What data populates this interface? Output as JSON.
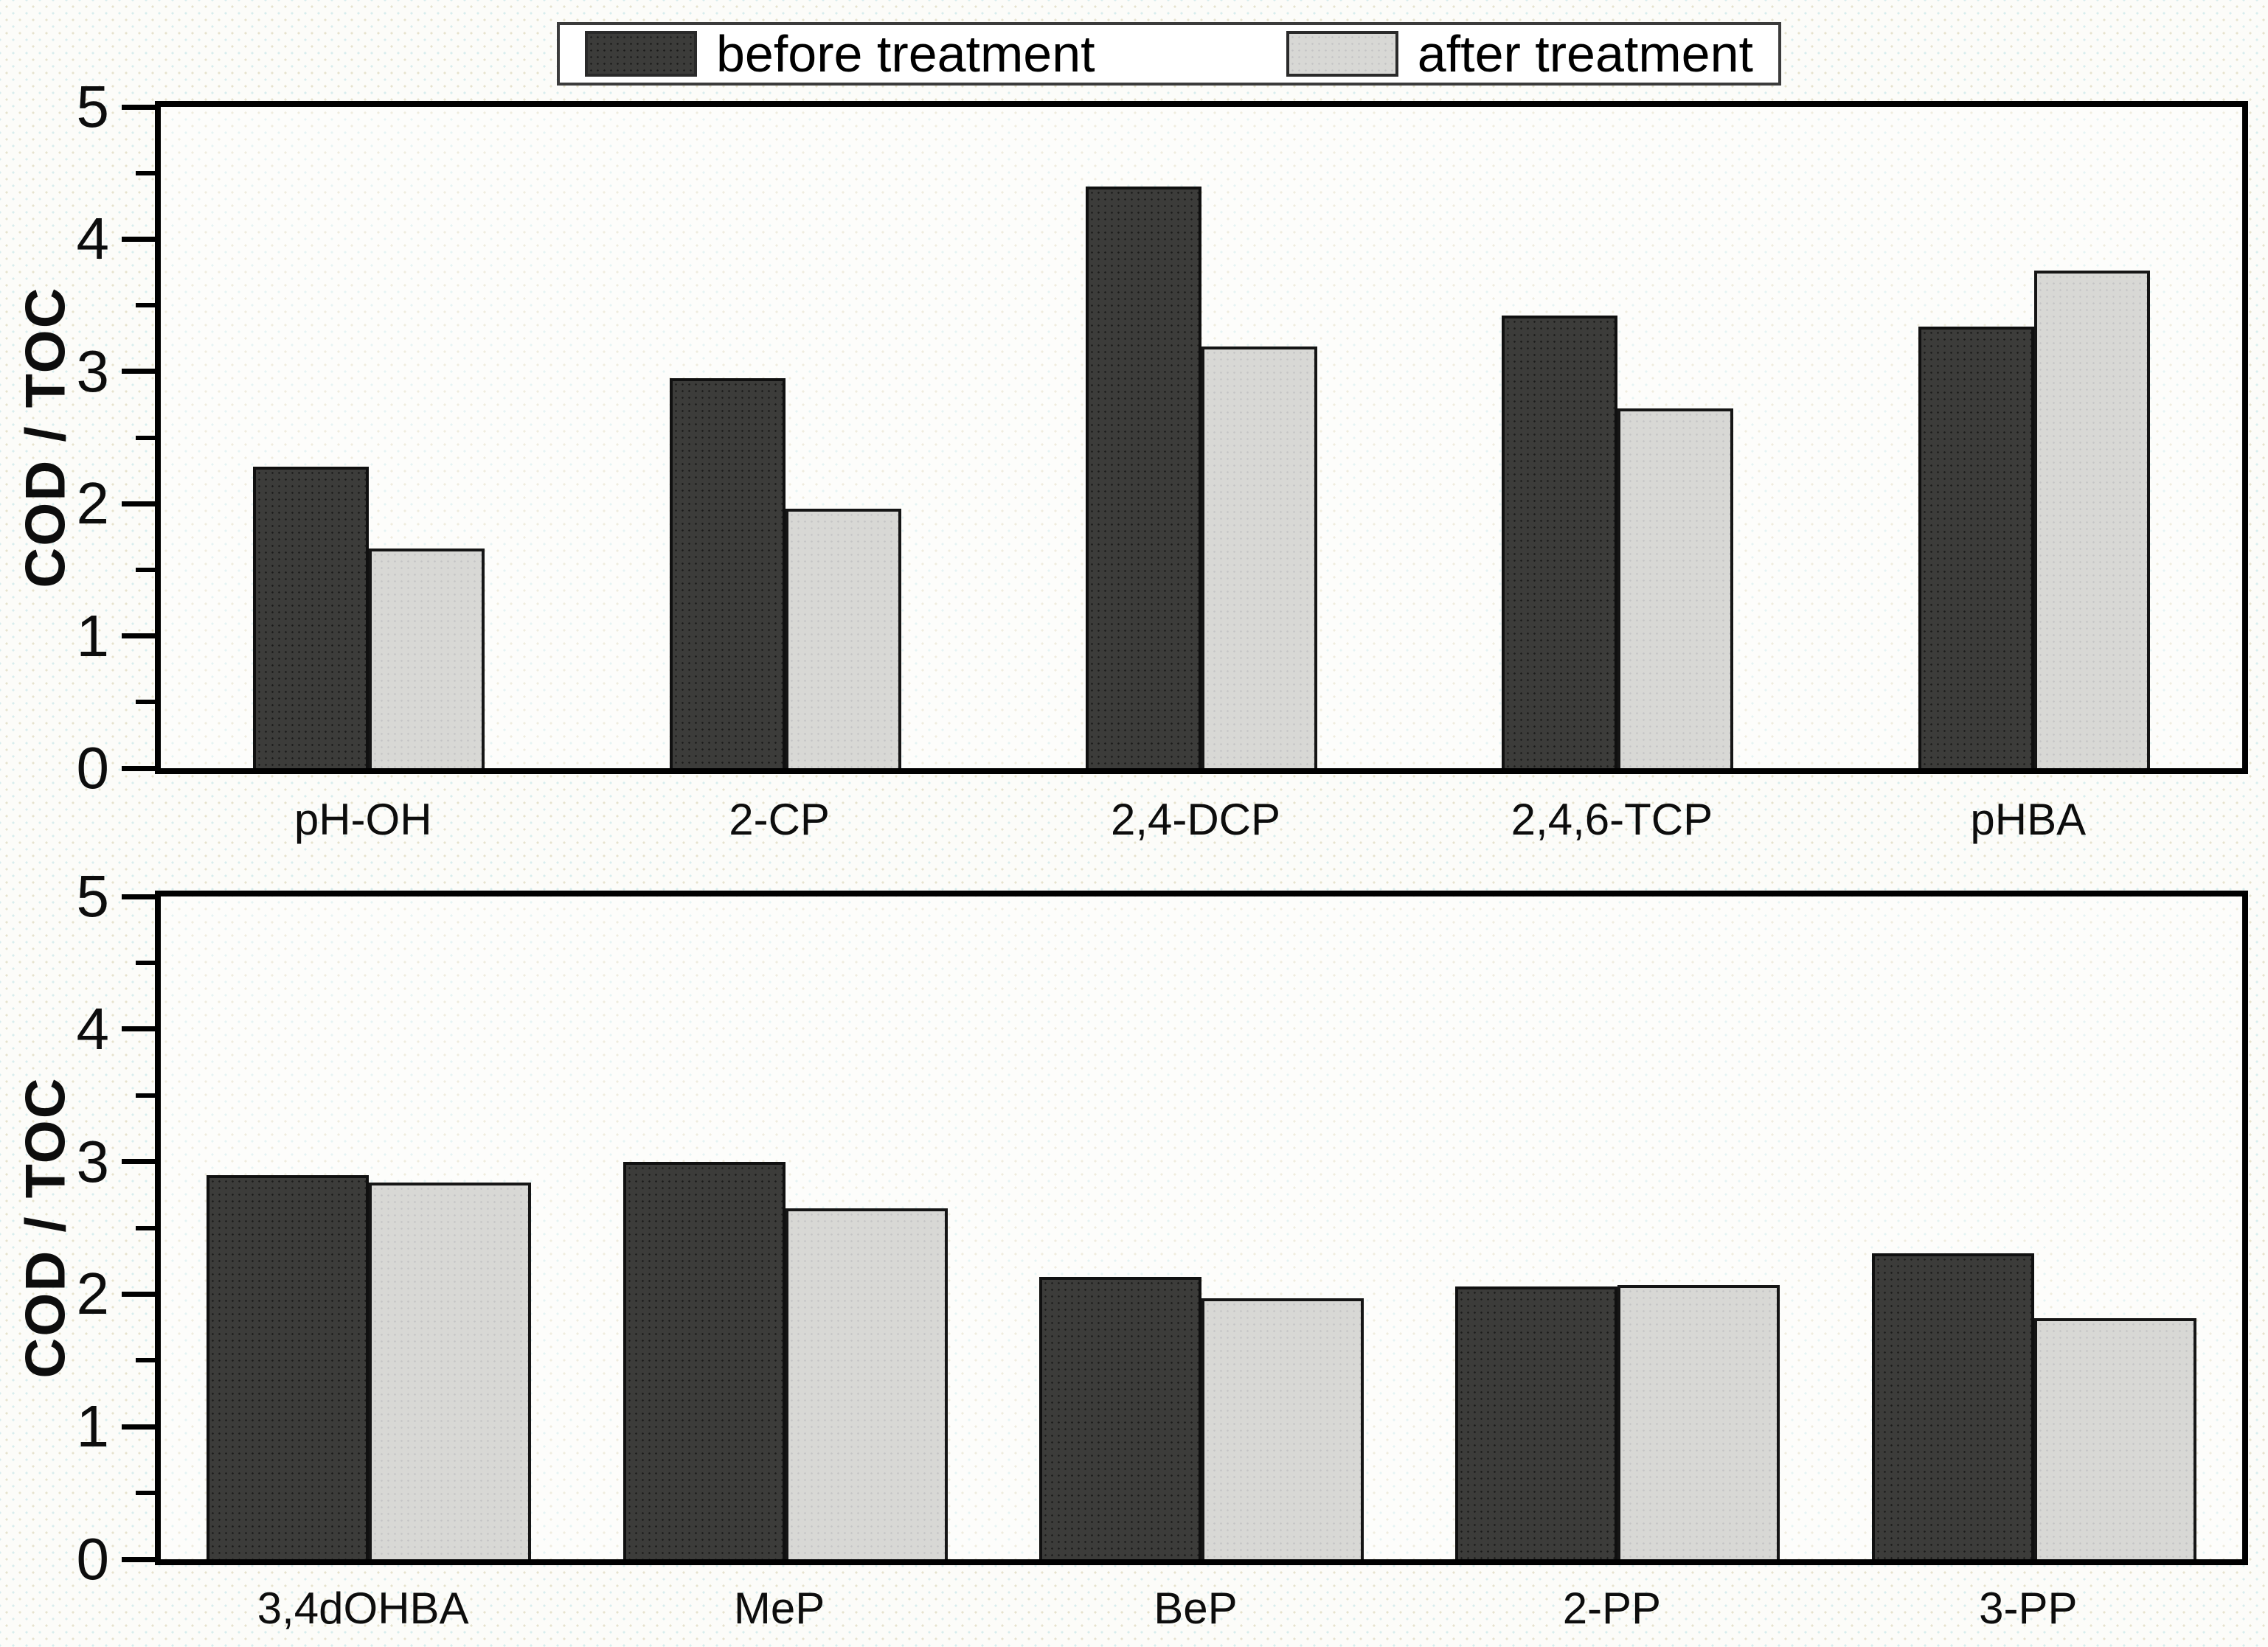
{
  "legend": {
    "items": [
      {
        "label": "before treatment",
        "color": "#3c3c3a"
      },
      {
        "label": "after treatment",
        "color": "#d8d8d5"
      }
    ]
  },
  "colors": {
    "before_fill": "#3c3c3a",
    "after_fill": "#d8d8d5",
    "bar_outline": "#151515",
    "axis": "#000000",
    "background": "#fcfcf9"
  },
  "chart_data": [
    {
      "type": "bar",
      "title": "",
      "xlabel": "",
      "ylabel": "COD / TOC",
      "ylim": [
        0,
        5
      ],
      "ytick_major": 1,
      "ytick_minor": 0.5,
      "ytick_labels": [
        "0",
        "1",
        "2",
        "3",
        "4",
        "5"
      ],
      "grid": false,
      "legend_position": "top-center",
      "categories": [
        "pH-OH",
        "2-CP",
        "2,4-DCP",
        "2,4,6-TCP",
        "pHBA"
      ],
      "series": [
        {
          "name": "before treatment",
          "values": [
            2.28,
            2.95,
            4.4,
            3.42,
            3.34
          ]
        },
        {
          "name": "after treatment",
          "values": [
            1.66,
            1.96,
            3.19,
            2.72,
            3.76
          ]
        }
      ]
    },
    {
      "type": "bar",
      "title": "",
      "xlabel": "",
      "ylabel": "COD / TOC",
      "ylim": [
        0,
        5
      ],
      "ytick_major": 1,
      "ytick_minor": 0.5,
      "ytick_labels": [
        "0",
        "1",
        "2",
        "3",
        "4",
        "5"
      ],
      "grid": false,
      "legend_position": "shared-top",
      "categories": [
        "3,4dOHBA",
        "MeP",
        "BeP",
        "2-PP",
        "3-PP"
      ],
      "series": [
        {
          "name": "before treatment",
          "values": [
            2.9,
            3.0,
            2.13,
            2.06,
            2.31
          ]
        },
        {
          "name": "after treatment",
          "values": [
            2.84,
            2.65,
            1.97,
            2.07,
            1.82
          ]
        }
      ]
    }
  ]
}
